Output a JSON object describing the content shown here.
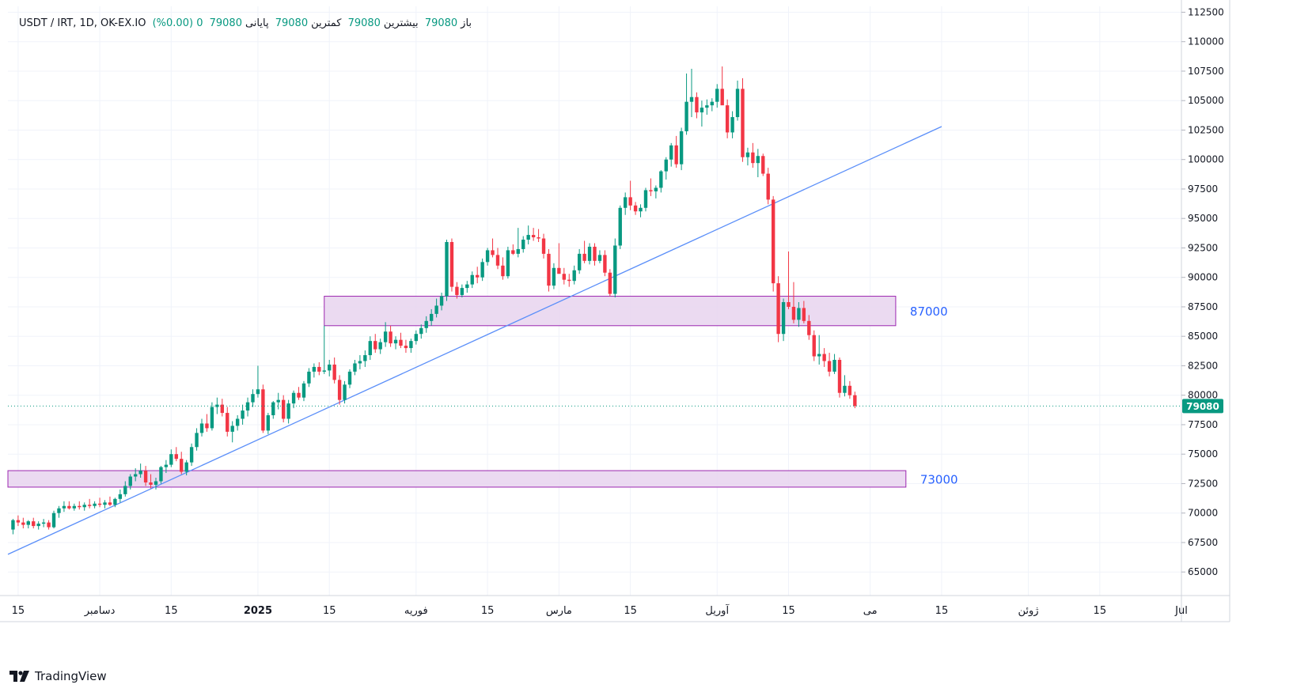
{
  "header": {
    "symbol": "USDT / IRT, 1D, OK-EX.IO",
    "open_label": "باز",
    "open_value": "79080",
    "high_label": "بیشترین",
    "high_value": "79080",
    "low_label": "کمترین",
    "low_value": "79080",
    "close_label": "پایانی",
    "close_value": "79080",
    "change": "0 (0.00%)"
  },
  "branding": {
    "logo_text": "TradingView"
  },
  "price_badge": {
    "text": "79080",
    "color": "#089981"
  },
  "colors": {
    "up": "#089981",
    "down": "#f23645",
    "trendline": "#5b8ff9",
    "zone_fill": "#e8d4ee",
    "zone_border": "#9c27b0",
    "zone_label": "#2962ff",
    "grid": "#f0f3fa"
  },
  "chart_data": {
    "type": "candlestick",
    "ylim": [
      63000,
      113000
    ],
    "y_ticks": [
      65000,
      67500,
      70000,
      72500,
      75000,
      77500,
      80000,
      82500,
      85000,
      87500,
      90000,
      92500,
      95000,
      97500,
      100000,
      102500,
      105000,
      107500,
      110000,
      112500
    ],
    "x_range": [
      "2024-11-13",
      "2025-07-01"
    ],
    "x_ticks": [
      {
        "date": "2024-11-15",
        "label": "15"
      },
      {
        "date": "2024-12-01",
        "label": "دسامبر"
      },
      {
        "date": "2024-12-15",
        "label": "15"
      },
      {
        "date": "2025-01-01",
        "label": "2025"
      },
      {
        "date": "2025-01-15",
        "label": "15"
      },
      {
        "date": "2025-02-01",
        "label": "فوریه"
      },
      {
        "date": "2025-02-15",
        "label": "15"
      },
      {
        "date": "2025-03-01",
        "label": "مارس"
      },
      {
        "date": "2025-03-15",
        "label": "15"
      },
      {
        "date": "2025-04-01",
        "label": "آوریل"
      },
      {
        "date": "2025-04-15",
        "label": "15"
      },
      {
        "date": "2025-05-01",
        "label": "می"
      },
      {
        "date": "2025-05-15",
        "label": "15"
      },
      {
        "date": "2025-06-01",
        "label": "ژوئن"
      },
      {
        "date": "2025-06-15",
        "label": "15"
      },
      {
        "date": "2025-07-01",
        "label": "Jul"
      }
    ],
    "last_price": 79080,
    "zones": [
      {
        "label": "87000",
        "start": "2025-01-14",
        "end": "2025-05-06",
        "low": 85900,
        "high": 88400
      },
      {
        "label": "73000",
        "start": "2024-11-13",
        "end": "2025-05-08",
        "low": 72200,
        "high": 73600
      }
    ],
    "trendline": {
      "start_date": "2024-11-13",
      "start_price": 66500,
      "end_date": "2025-05-15",
      "end_price": 102800
    },
    "candles": [
      [
        "2024-11-14",
        68600,
        69500,
        68200,
        69400
      ],
      [
        "2024-11-15",
        69400,
        69800,
        68900,
        69200
      ],
      [
        "2024-11-16",
        69200,
        69600,
        68700,
        69000
      ],
      [
        "2024-11-17",
        69000,
        69400,
        68700,
        69300
      ],
      [
        "2024-11-18",
        69300,
        69600,
        68700,
        68900
      ],
      [
        "2024-11-19",
        68900,
        69300,
        68600,
        69100
      ],
      [
        "2024-11-20",
        69100,
        69500,
        68800,
        69200
      ],
      [
        "2024-11-21",
        69200,
        69400,
        68600,
        68800
      ],
      [
        "2024-11-22",
        68800,
        70200,
        68700,
        70000
      ],
      [
        "2024-11-23",
        70000,
        70600,
        69600,
        70400
      ],
      [
        "2024-11-24",
        70400,
        71000,
        70100,
        70600
      ],
      [
        "2024-11-25",
        70600,
        71000,
        70300,
        70400
      ],
      [
        "2024-11-26",
        70400,
        70800,
        70200,
        70600
      ],
      [
        "2024-11-27",
        70600,
        71000,
        70300,
        70500
      ],
      [
        "2024-11-28",
        70500,
        70900,
        70200,
        70700
      ],
      [
        "2024-11-29",
        70700,
        71200,
        70400,
        70600
      ],
      [
        "2024-11-30",
        70600,
        71000,
        70400,
        70800
      ],
      [
        "2024-12-01",
        70800,
        71300,
        70500,
        70700
      ],
      [
        "2024-12-02",
        70700,
        71100,
        70400,
        70900
      ],
      [
        "2024-12-03",
        70900,
        71400,
        70600,
        70700
      ],
      [
        "2024-12-04",
        70700,
        71300,
        70500,
        71200
      ],
      [
        "2024-12-05",
        71200,
        72000,
        70900,
        71600
      ],
      [
        "2024-12-06",
        71600,
        72700,
        71400,
        72300
      ],
      [
        "2024-12-07",
        72300,
        73300,
        72000,
        73100
      ],
      [
        "2024-12-08",
        73100,
        73800,
        72700,
        73300
      ],
      [
        "2024-12-09",
        73300,
        74200,
        73000,
        73600
      ],
      [
        "2024-12-10",
        73600,
        74000,
        72300,
        72600
      ],
      [
        "2024-12-11",
        72600,
        73300,
        72100,
        72400
      ],
      [
        "2024-12-12",
        72400,
        73000,
        72000,
        72700
      ],
      [
        "2024-12-13",
        72700,
        74000,
        72500,
        73900
      ],
      [
        "2024-12-14",
        73900,
        74500,
        73400,
        74100
      ],
      [
        "2024-12-15",
        74100,
        75400,
        73900,
        75000
      ],
      [
        "2024-12-16",
        75000,
        75600,
        74400,
        74600
      ],
      [
        "2024-12-17",
        74600,
        75200,
        73300,
        73500
      ],
      [
        "2024-12-18",
        73500,
        74500,
        73200,
        74300
      ],
      [
        "2024-12-19",
        74300,
        75900,
        74000,
        75600
      ],
      [
        "2024-12-20",
        75600,
        77200,
        75300,
        76800
      ],
      [
        "2024-12-21",
        76800,
        78000,
        76500,
        77600
      ],
      [
        "2024-12-22",
        77600,
        78400,
        76900,
        77200
      ],
      [
        "2024-12-23",
        77200,
        79400,
        77000,
        79000
      ],
      [
        "2024-12-24",
        79000,
        79800,
        78400,
        79200
      ],
      [
        "2024-12-25",
        79200,
        79700,
        78200,
        78500
      ],
      [
        "2024-12-26",
        78500,
        79000,
        76500,
        76900
      ],
      [
        "2024-12-27",
        76900,
        77800,
        76000,
        77400
      ],
      [
        "2024-12-28",
        77400,
        78300,
        77000,
        78000
      ],
      [
        "2024-12-29",
        78000,
        79200,
        77500,
        78700
      ],
      [
        "2024-12-30",
        78700,
        79800,
        78200,
        79400
      ],
      [
        "2024-12-31",
        79400,
        80500,
        79000,
        80100
      ],
      [
        "2025-01-01",
        80100,
        82500,
        79800,
        80500
      ],
      [
        "2025-01-02",
        80500,
        80900,
        76800,
        77000
      ],
      [
        "2025-01-03",
        77000,
        78500,
        76700,
        78300
      ],
      [
        "2025-01-04",
        78300,
        79500,
        78000,
        79400
      ],
      [
        "2025-01-05",
        79400,
        80200,
        78800,
        79600
      ],
      [
        "2025-01-06",
        79600,
        80000,
        77700,
        78000
      ],
      [
        "2025-01-07",
        78000,
        79600,
        77600,
        79300
      ],
      [
        "2025-01-08",
        79300,
        80400,
        78900,
        80200
      ],
      [
        "2025-01-09",
        80200,
        80700,
        79600,
        79800
      ],
      [
        "2025-01-10",
        79800,
        81200,
        79500,
        81000
      ],
      [
        "2025-01-11",
        81000,
        82300,
        80700,
        82000
      ],
      [
        "2025-01-12",
        82000,
        82700,
        81500,
        82400
      ],
      [
        "2025-01-13",
        82400,
        82800,
        81700,
        82000
      ],
      [
        "2025-01-14",
        82000,
        85900,
        81800,
        82100
      ],
      [
        "2025-01-15",
        82100,
        83000,
        81600,
        82600
      ],
      [
        "2025-01-16",
        82600,
        83200,
        81000,
        81300
      ],
      [
        "2025-01-17",
        81300,
        81700,
        79200,
        79600
      ],
      [
        "2025-01-18",
        79600,
        81200,
        79300,
        80900
      ],
      [
        "2025-01-19",
        80900,
        82200,
        80600,
        82000
      ],
      [
        "2025-01-20",
        82000,
        83000,
        81700,
        82700
      ],
      [
        "2025-01-21",
        82700,
        83400,
        82200,
        82900
      ],
      [
        "2025-01-22",
        82900,
        83800,
        82400,
        83400
      ],
      [
        "2025-01-23",
        83400,
        85000,
        83000,
        84600
      ],
      [
        "2025-01-24",
        84600,
        85200,
        83600,
        83900
      ],
      [
        "2025-01-25",
        83900,
        84800,
        83500,
        84500
      ],
      [
        "2025-01-26",
        84500,
        86200,
        84100,
        85400
      ],
      [
        "2025-01-27",
        85400,
        85900,
        84100,
        84400
      ],
      [
        "2025-01-28",
        84400,
        85000,
        83900,
        84700
      ],
      [
        "2025-01-29",
        84700,
        85300,
        84000,
        84200
      ],
      [
        "2025-01-30",
        84200,
        84700,
        83600,
        84000
      ],
      [
        "2025-01-31",
        84000,
        84800,
        83600,
        84600
      ],
      [
        "2025-02-01",
        84600,
        85500,
        84300,
        85200
      ],
      [
        "2025-02-02",
        85200,
        86000,
        84800,
        85700
      ],
      [
        "2025-02-03",
        85700,
        86700,
        85300,
        86300
      ],
      [
        "2025-02-04",
        86300,
        87300,
        85900,
        86900
      ],
      [
        "2025-02-05",
        86900,
        88200,
        86600,
        87600
      ],
      [
        "2025-02-06",
        87600,
        88700,
        87200,
        88400
      ],
      [
        "2025-02-07",
        88400,
        93200,
        88000,
        93000
      ],
      [
        "2025-02-08",
        93000,
        93300,
        88800,
        89200
      ],
      [
        "2025-02-09",
        89200,
        89600,
        88200,
        88500
      ],
      [
        "2025-02-10",
        88500,
        89400,
        88300,
        89100
      ],
      [
        "2025-02-11",
        89100,
        89700,
        88700,
        89400
      ],
      [
        "2025-02-12",
        89400,
        90500,
        89100,
        90200
      ],
      [
        "2025-02-13",
        90200,
        90900,
        89500,
        90000
      ],
      [
        "2025-02-14",
        90000,
        91600,
        89700,
        91300
      ],
      [
        "2025-02-15",
        91300,
        92500,
        91000,
        92300
      ],
      [
        "2025-02-16",
        92300,
        93300,
        91700,
        91900
      ],
      [
        "2025-02-17",
        91900,
        92500,
        90700,
        91000
      ],
      [
        "2025-02-18",
        91000,
        91700,
        89800,
        90100
      ],
      [
        "2025-02-19",
        90100,
        92600,
        89900,
        92300
      ],
      [
        "2025-02-20",
        92300,
        92800,
        91900,
        92000
      ],
      [
        "2025-02-21",
        92000,
        94200,
        91700,
        92400
      ],
      [
        "2025-02-22",
        92400,
        93500,
        92100,
        93200
      ],
      [
        "2025-02-23",
        93200,
        94400,
        92800,
        93600
      ],
      [
        "2025-02-24",
        93600,
        94200,
        93100,
        93400
      ],
      [
        "2025-02-25",
        93400,
        94100,
        93000,
        93300
      ],
      [
        "2025-02-26",
        93300,
        93700,
        91600,
        92000
      ],
      [
        "2025-02-27",
        92000,
        92400,
        88800,
        89300
      ],
      [
        "2025-02-28",
        89300,
        91200,
        89000,
        90800
      ],
      [
        "2025-03-01",
        90800,
        92900,
        90500,
        90300
      ],
      [
        "2025-03-02",
        90300,
        90800,
        89400,
        89800
      ],
      [
        "2025-03-03",
        89800,
        90300,
        89200,
        89700
      ],
      [
        "2025-03-04",
        89700,
        91000,
        89400,
        90600
      ],
      [
        "2025-03-05",
        90600,
        92400,
        90300,
        92000
      ],
      [
        "2025-03-06",
        92000,
        93100,
        91200,
        91400
      ],
      [
        "2025-03-07",
        91400,
        92900,
        91100,
        92600
      ],
      [
        "2025-03-08",
        92600,
        92900,
        91000,
        91400
      ],
      [
        "2025-03-09",
        91400,
        92300,
        91200,
        91900
      ],
      [
        "2025-03-10",
        91900,
        92300,
        90100,
        90400
      ],
      [
        "2025-03-11",
        90400,
        90700,
        88400,
        88600
      ],
      [
        "2025-03-12",
        88600,
        93300,
        88300,
        92700
      ],
      [
        "2025-03-13",
        92700,
        96100,
        92400,
        95900
      ],
      [
        "2025-03-14",
        95900,
        97200,
        95300,
        96800
      ],
      [
        "2025-03-15",
        96800,
        98200,
        95700,
        96100
      ],
      [
        "2025-03-16",
        96100,
        96400,
        95300,
        95600
      ],
      [
        "2025-03-17",
        95600,
        96200,
        95100,
        95900
      ],
      [
        "2025-03-18",
        95900,
        97600,
        95600,
        97400
      ],
      [
        "2025-03-19",
        97400,
        98400,
        96900,
        97300
      ],
      [
        "2025-03-20",
        97300,
        97800,
        96700,
        97600
      ],
      [
        "2025-03-21",
        97600,
        99100,
        97200,
        99000
      ],
      [
        "2025-03-22",
        99000,
        100200,
        98300,
        100000
      ],
      [
        "2025-03-23",
        100000,
        101400,
        99400,
        101200
      ],
      [
        "2025-03-24",
        101200,
        102000,
        99300,
        99600
      ],
      [
        "2025-03-25",
        99600,
        102700,
        99100,
        102400
      ],
      [
        "2025-03-26",
        102400,
        107300,
        102100,
        104900
      ],
      [
        "2025-03-27",
        104900,
        107700,
        103600,
        105300
      ],
      [
        "2025-03-28",
        105300,
        105700,
        103500,
        104000
      ],
      [
        "2025-03-29",
        104000,
        105000,
        102800,
        104400
      ],
      [
        "2025-03-30",
        104400,
        105100,
        103800,
        104600
      ],
      [
        "2025-03-31",
        104600,
        105200,
        104100,
        104900
      ],
      [
        "2025-04-01",
        104900,
        106400,
        104400,
        106000
      ],
      [
        "2025-04-02",
        106000,
        107900,
        104700,
        104600
      ],
      [
        "2025-04-03",
        104600,
        105100,
        101800,
        102300
      ],
      [
        "2025-04-04",
        102300,
        104100,
        101800,
        103600
      ],
      [
        "2025-04-05",
        103600,
        106700,
        103300,
        106000
      ],
      [
        "2025-04-06",
        106000,
        106900,
        99800,
        100200
      ],
      [
        "2025-04-07",
        100200,
        101000,
        99500,
        100600
      ],
      [
        "2025-04-08",
        100600,
        101400,
        99300,
        99700
      ],
      [
        "2025-04-09",
        99700,
        100900,
        98500,
        100300
      ],
      [
        "2025-04-10",
        100300,
        100500,
        98600,
        98800
      ],
      [
        "2025-04-11",
        98800,
        99300,
        96200,
        96600
      ],
      [
        "2025-04-12",
        96600,
        96900,
        88800,
        89500
      ],
      [
        "2025-04-13",
        89500,
        90100,
        84500,
        85200
      ],
      [
        "2025-04-14",
        85200,
        88200,
        84600,
        87900
      ],
      [
        "2025-04-15",
        87900,
        92200,
        87300,
        87500
      ],
      [
        "2025-04-16",
        87500,
        89600,
        86100,
        86400
      ],
      [
        "2025-04-17",
        86400,
        87900,
        85800,
        87400
      ],
      [
        "2025-04-18",
        87400,
        88000,
        86100,
        86300
      ],
      [
        "2025-04-19",
        86300,
        86800,
        84700,
        85100
      ],
      [
        "2025-04-20",
        85100,
        85500,
        82900,
        83300
      ],
      [
        "2025-04-21",
        83300,
        85100,
        82600,
        83500
      ],
      [
        "2025-04-22",
        83500,
        84000,
        82400,
        82900
      ],
      [
        "2025-04-23",
        82900,
        83600,
        81600,
        82000
      ],
      [
        "2025-04-24",
        82000,
        83500,
        81800,
        83000
      ],
      [
        "2025-04-25",
        83000,
        83200,
        79800,
        80200
      ],
      [
        "2025-04-26",
        80200,
        81700,
        79900,
        80800
      ],
      [
        "2025-04-27",
        80800,
        81200,
        79700,
        80000
      ],
      [
        "2025-04-28",
        80000,
        80300,
        78900,
        79080
      ]
    ]
  }
}
